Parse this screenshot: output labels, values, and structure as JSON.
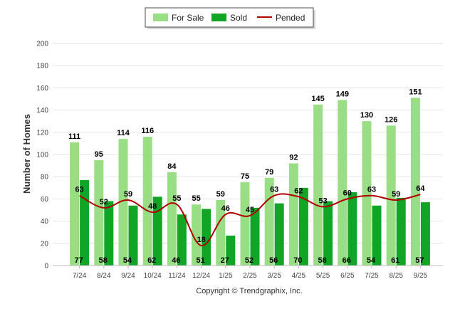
{
  "chart_data": {
    "type": "bar",
    "title": "",
    "xlabel": "",
    "ylabel": "Number of Homes",
    "ylim": [
      0,
      200
    ],
    "yticks": [
      0,
      20,
      40,
      60,
      80,
      100,
      120,
      140,
      160,
      180,
      200
    ],
    "grid": true,
    "legend_position": "top-center",
    "categories": [
      "7/24",
      "8/24",
      "9/24",
      "10/24",
      "11/24",
      "12/24",
      "1/25",
      "2/25",
      "3/25",
      "4/25",
      "5/25",
      "6/25",
      "7/25",
      "8/25",
      "9/25"
    ],
    "series": [
      {
        "name": "For Sale",
        "kind": "bar",
        "color": "#99de85",
        "values": [
          111,
          95,
          114,
          116,
          84,
          55,
          59,
          75,
          79,
          92,
          145,
          149,
          130,
          126,
          151
        ]
      },
      {
        "name": "Sold",
        "kind": "bar",
        "color": "#11a526",
        "values": [
          77,
          58,
          54,
          62,
          46,
          51,
          27,
          52,
          56,
          70,
          58,
          66,
          54,
          61,
          57
        ]
      },
      {
        "name": "Pended",
        "kind": "line",
        "color": "#b00000",
        "values": [
          63,
          52,
          59,
          48,
          55,
          18,
          46,
          45,
          63,
          62,
          53,
          60,
          63,
          59,
          64
        ]
      }
    ]
  },
  "footer": {
    "copyright": "Copyright © Trendgraphix, Inc."
  }
}
